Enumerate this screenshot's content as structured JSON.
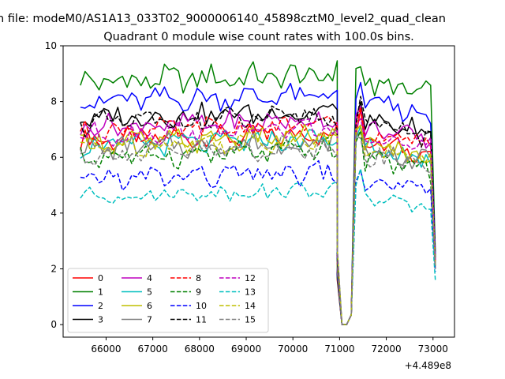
{
  "figure": {
    "suptitle": "n file: modeM0/AS1A13_033T02_9000006140_45898cztM0_level2_quad_clean",
    "title": "Quadrant 0 module wise count rates with 100.0s bins.",
    "x_offset_label": "+4.489e8"
  },
  "chart_data": {
    "type": "line",
    "title": "Quadrant 0 module wise count rates with 100.0s bins.",
    "xlabel": "",
    "ylabel": "",
    "x_offset": 448900000,
    "xlim": [
      65080,
      73460
    ],
    "ylim": [
      -0.45,
      10
    ],
    "xticks": [
      66000,
      67000,
      68000,
      69000,
      70000,
      71000,
      72000,
      73000
    ],
    "yticks": [
      0,
      2,
      4,
      6,
      8,
      10
    ],
    "xtick_labels": [
      "66000",
      "67000",
      "68000",
      "69000",
      "70000",
      "71000",
      "72000",
      "73000"
    ],
    "ytick_labels": [
      "0",
      "2",
      "4",
      "6",
      "8",
      "10"
    ],
    "bin_seconds": 100,
    "segments": [
      {
        "x_start": 65450,
        "n": 56
      },
      {
        "x_start": 71350,
        "n": 18
      }
    ],
    "gap": {
      "x": [
        70950,
        71050,
        71150,
        71250
      ],
      "values": [
        2.0,
        0.0,
        0.0,
        0.35
      ]
    },
    "legend": {
      "location": "lower left",
      "ncol": 4
    },
    "series": [
      {
        "name": "0",
        "color": "#ff0000",
        "dash": "solid",
        "base": 6.6,
        "amp": 0.28,
        "end": 2.1
      },
      {
        "name": "1",
        "color": "#008000",
        "dash": "solid",
        "base": 8.7,
        "amp": 0.35,
        "end": 2.6
      },
      {
        "name": "2",
        "color": "#0000ff",
        "dash": "solid",
        "base": 8.0,
        "amp": 0.3,
        "end": 2.5
      },
      {
        "name": "3",
        "color": "#000000",
        "dash": "solid",
        "base": 7.4,
        "amp": 0.3,
        "end": 2.3
      },
      {
        "name": "4",
        "color": "#bf00bf",
        "dash": "solid",
        "base": 7.1,
        "amp": 0.28,
        "end": 2.2
      },
      {
        "name": "5",
        "color": "#00bfbf",
        "dash": "solid",
        "base": 6.4,
        "amp": 0.28,
        "end": 2.1
      },
      {
        "name": "6",
        "color": "#bfbf00",
        "dash": "solid",
        "base": 6.5,
        "amp": 0.3,
        "end": 2.1
      },
      {
        "name": "7",
        "color": "#808080",
        "dash": "solid",
        "base": 6.3,
        "amp": 0.3,
        "end": 2.0
      },
      {
        "name": "8",
        "color": "#ff0000",
        "dash": "dashed",
        "base": 6.9,
        "amp": 0.28,
        "end": 2.2
      },
      {
        "name": "9",
        "color": "#008000",
        "dash": "dashed",
        "base": 6.0,
        "amp": 0.3,
        "end": 2.0
      },
      {
        "name": "10",
        "color": "#0000ff",
        "dash": "dashed",
        "base": 5.2,
        "amp": 0.3,
        "end": 1.9
      },
      {
        "name": "11",
        "color": "#000000",
        "dash": "dashed",
        "base": 7.2,
        "amp": 0.3,
        "end": 2.3
      },
      {
        "name": "12",
        "color": "#bf00bf",
        "dash": "dashed",
        "base": 6.8,
        "amp": 0.28,
        "end": 2.2
      },
      {
        "name": "13",
        "color": "#00bfbf",
        "dash": "dashed",
        "base": 4.6,
        "amp": 0.2,
        "end": 1.6
      },
      {
        "name": "14",
        "color": "#bfbf00",
        "dash": "dashed",
        "base": 6.4,
        "amp": 0.28,
        "end": 2.1
      },
      {
        "name": "15",
        "color": "#808080",
        "dash": "dashed",
        "base": 6.1,
        "amp": 0.3,
        "end": 2.0
      }
    ]
  }
}
